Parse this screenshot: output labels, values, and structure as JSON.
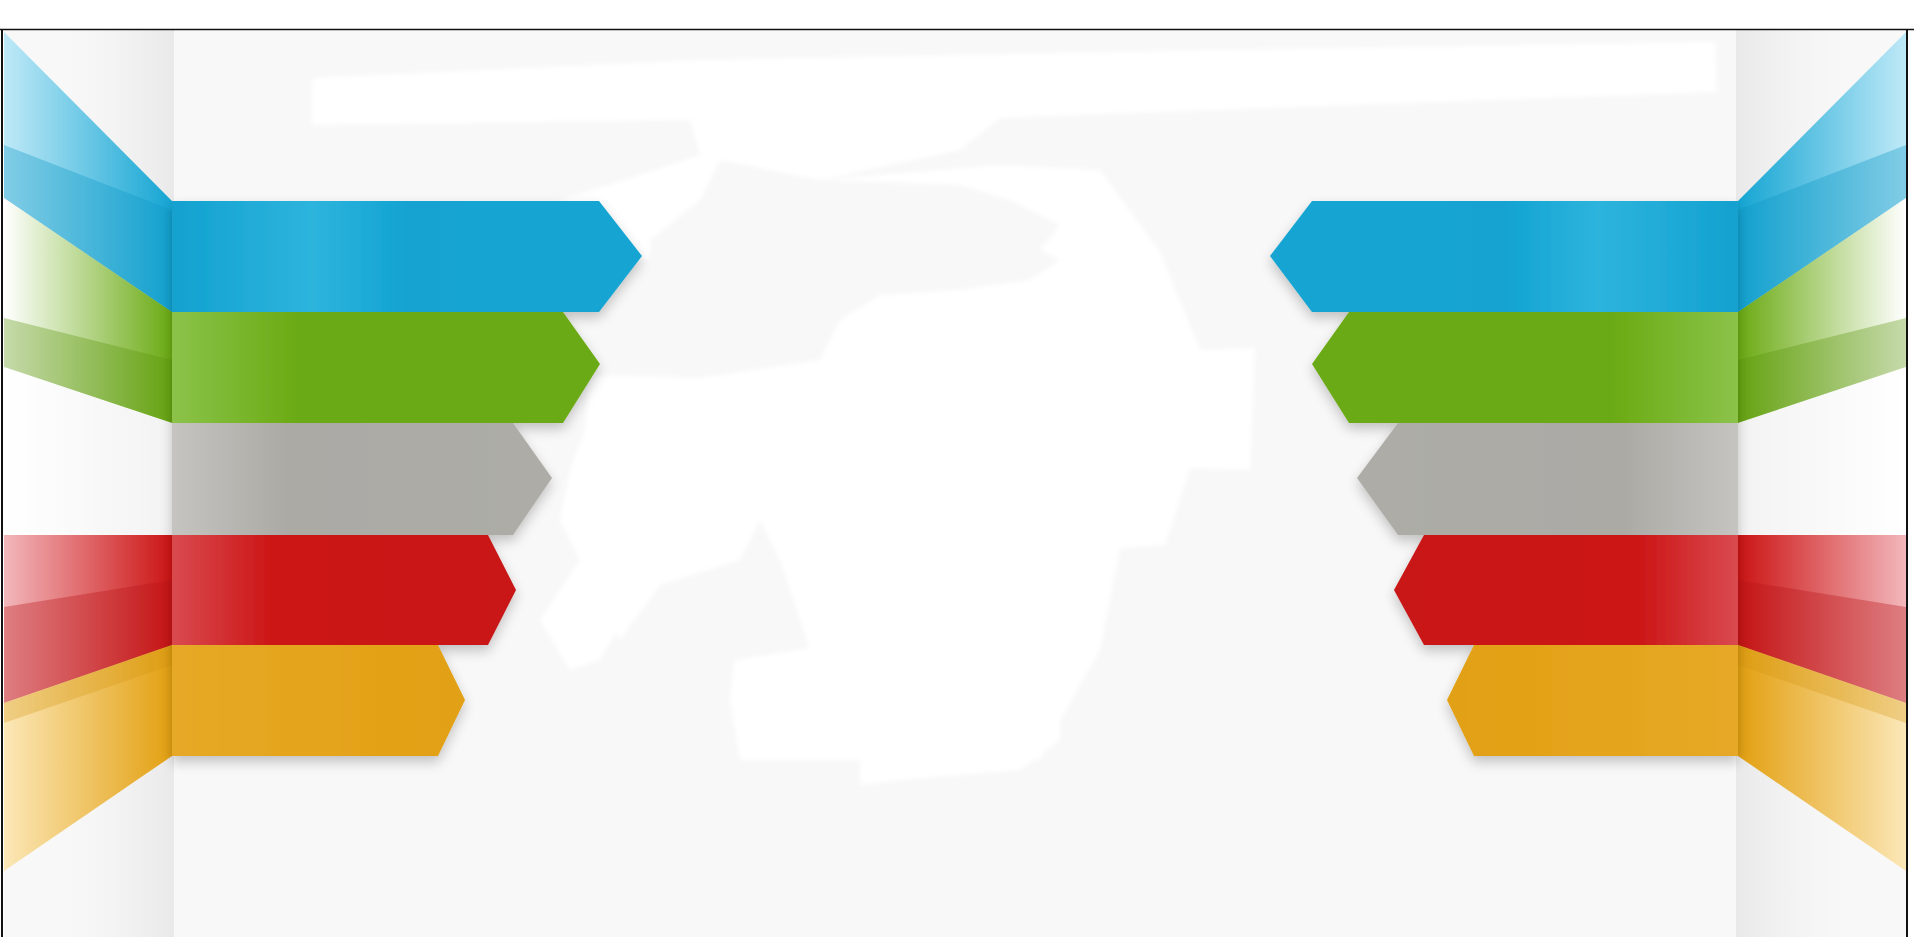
{
  "canvas": {
    "background": "#ffffff",
    "panel_background": "#f8f8f8",
    "border_color": "#111111"
  },
  "graphic": {
    "description_icon": "question-mark-icon",
    "ribbons": [
      {
        "name": "blue",
        "color": "#14a5d3",
        "light": "#7fd3ee",
        "dark": "#0e8ab2"
      },
      {
        "name": "green",
        "color": "#6aaa12",
        "light": "#b9df72",
        "dark": "#4f870a"
      },
      {
        "name": "gray",
        "color": "#acaba6",
        "light": "#d8d7d3",
        "dark": "#8f8e8a"
      },
      {
        "name": "red",
        "color": "#cc1414",
        "light": "#ee7f84",
        "dark": "#a40f10"
      },
      {
        "name": "yellow",
        "color": "#e3a011",
        "light": "#f6d27e",
        "dark": "#c08509"
      }
    ]
  }
}
